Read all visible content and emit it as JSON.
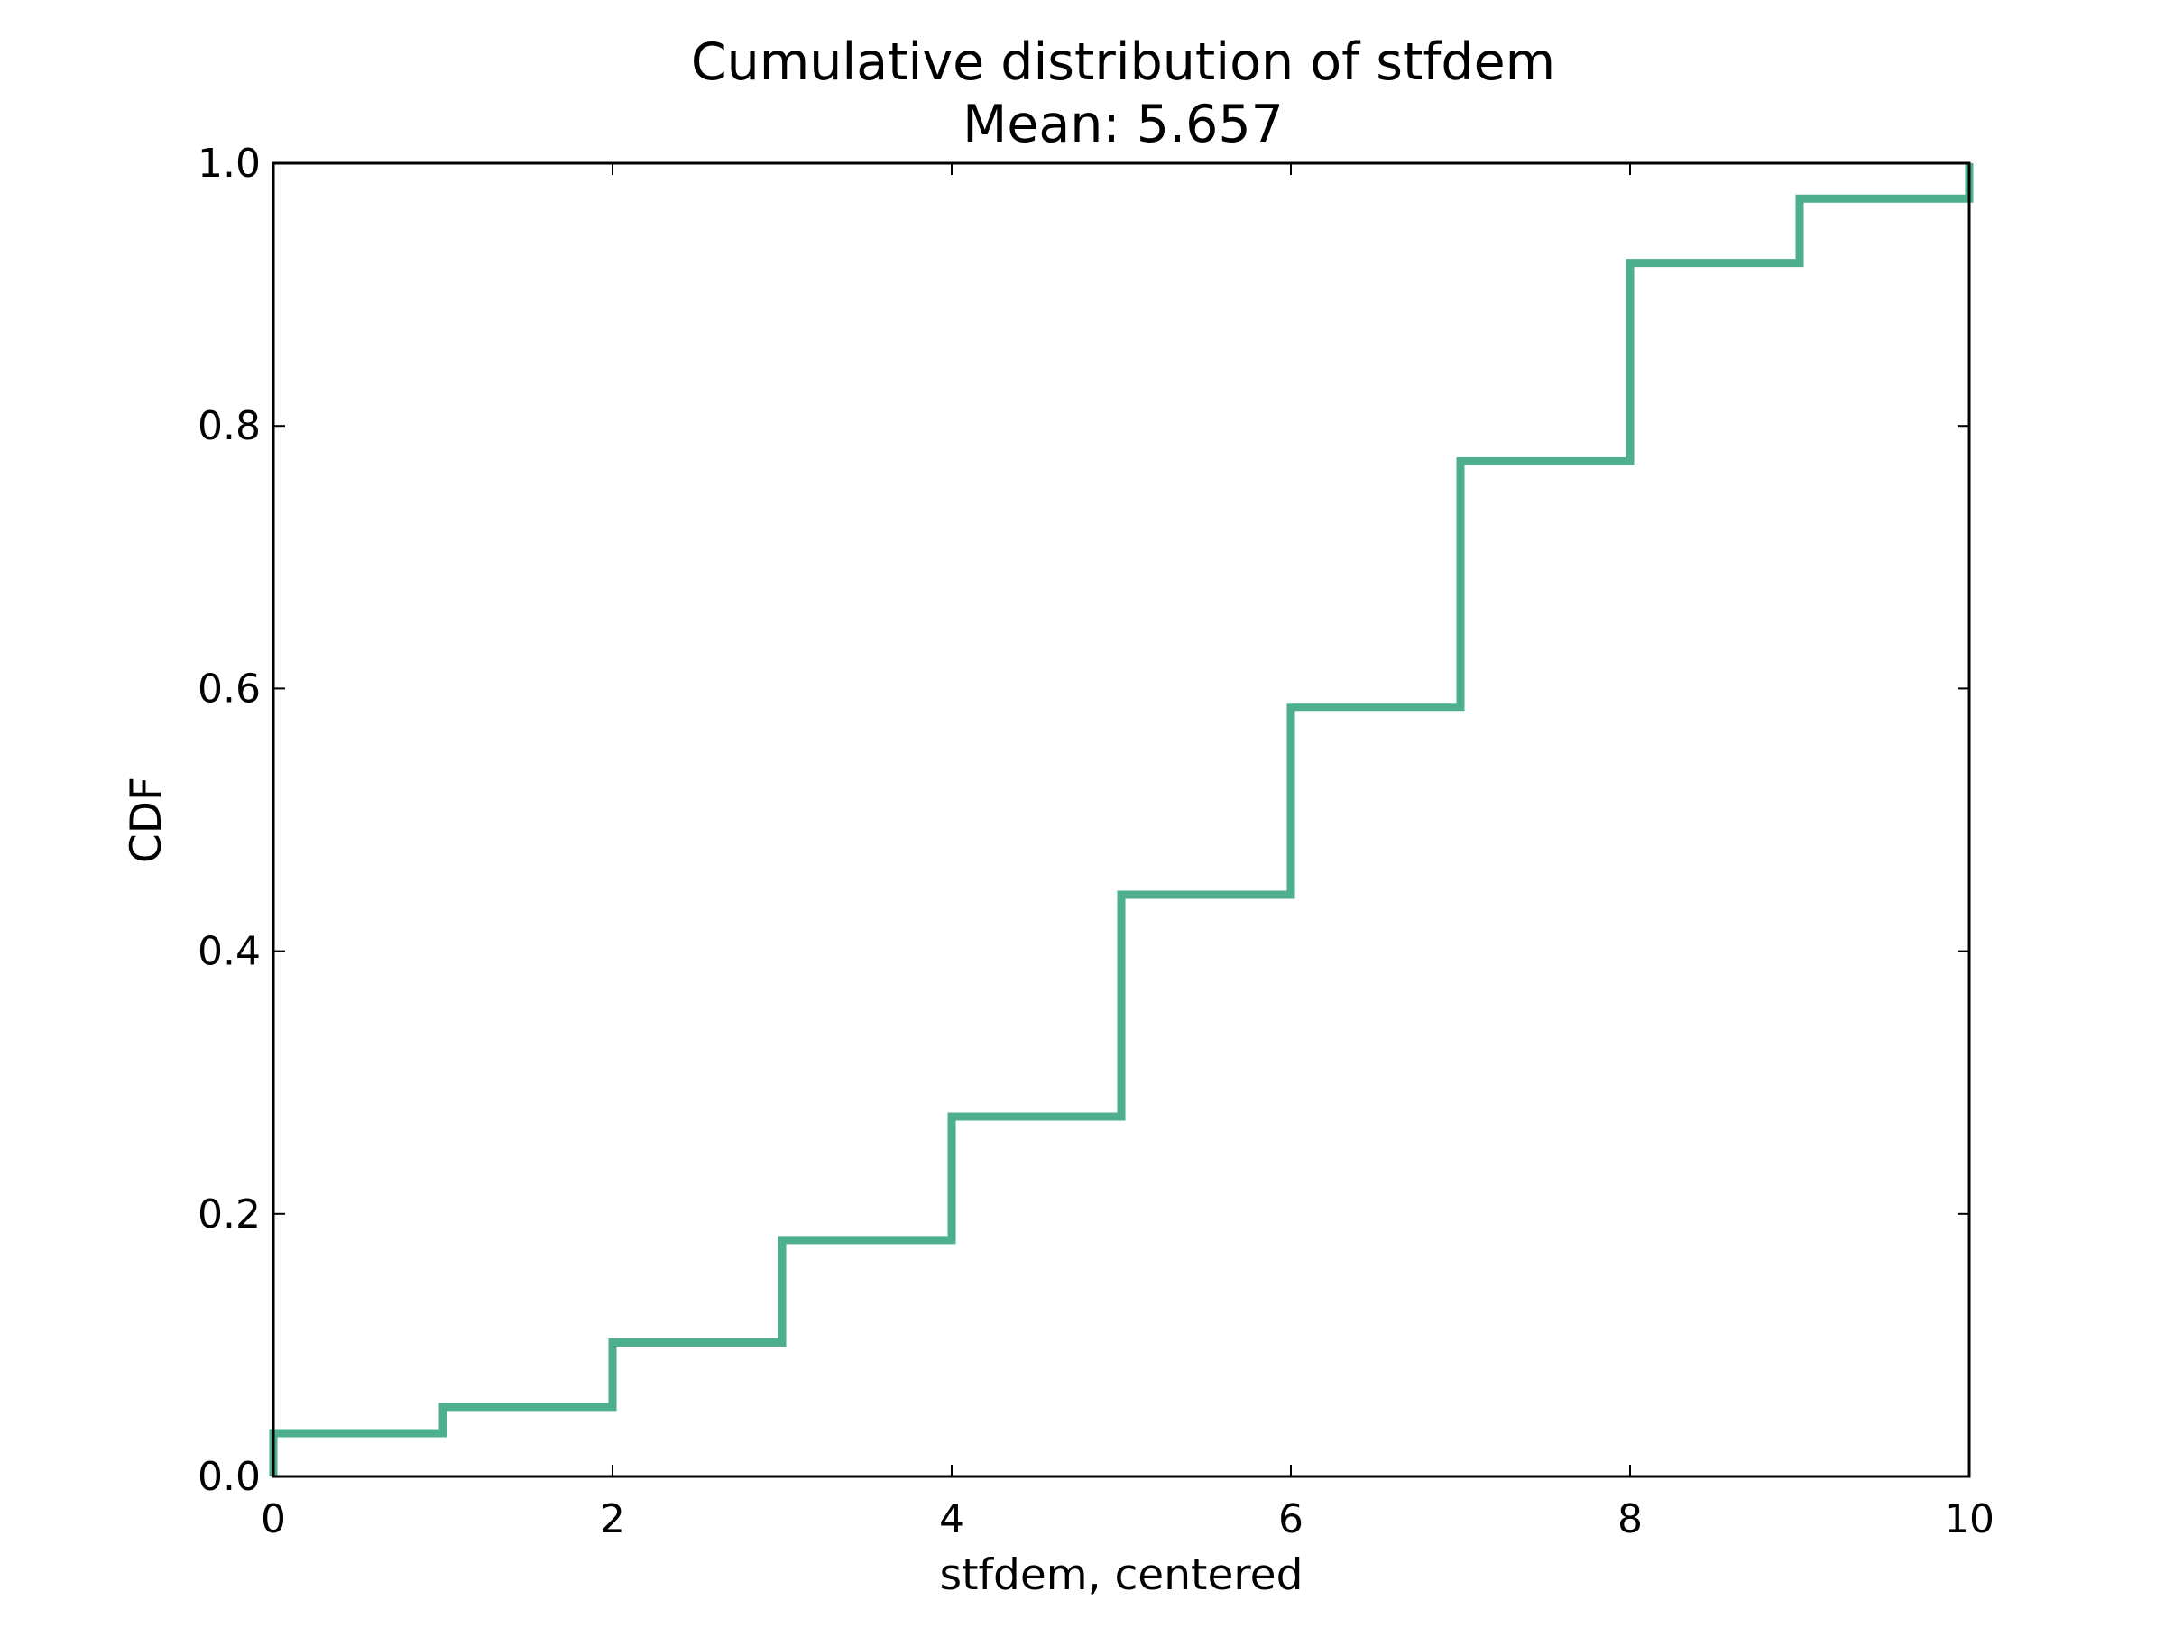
{
  "chart_data": {
    "type": "line",
    "step": true,
    "title": "Cumulative distribution of stfdem",
    "subtitle": "Mean: 5.657",
    "xlabel": "stfdem, centered",
    "ylabel": "CDF",
    "xlim": [
      0,
      10
    ],
    "ylim": [
      0,
      1.0
    ],
    "xticks": [
      0,
      2,
      4,
      6,
      8,
      10
    ],
    "xtick_labels": [
      "0",
      "2",
      "4",
      "6",
      "8",
      "10"
    ],
    "yticks": [
      0.0,
      0.2,
      0.4,
      0.6,
      0.8,
      1.0
    ],
    "ytick_labels": [
      "0.0",
      "0.2",
      "0.4",
      "0.6",
      "0.8",
      "1.0"
    ],
    "grid": false,
    "series": [
      {
        "color": "#4daf8e",
        "x": [
          0,
          1,
          2,
          3,
          4,
          5,
          6,
          7,
          8,
          9,
          10
        ],
        "y": [
          0.033,
          0.053,
          0.102,
          0.18,
          0.274,
          0.443,
          0.586,
          0.773,
          0.924,
          0.973,
          1.0
        ]
      }
    ]
  }
}
